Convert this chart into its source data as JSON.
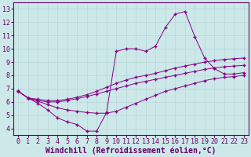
{
  "xlabel": "Windchill (Refroidissement éolien,°C)",
  "bg_color": "#cce8e8",
  "line_color": "#880088",
  "grid_color": "#b8d8d8",
  "xlim": [
    -0.5,
    23.5
  ],
  "ylim": [
    3.5,
    13.5
  ],
  "xticks": [
    0,
    1,
    2,
    3,
    4,
    5,
    6,
    7,
    8,
    9,
    10,
    11,
    12,
    13,
    14,
    15,
    16,
    17,
    18,
    19,
    20,
    21,
    22,
    23
  ],
  "yticks": [
    4,
    5,
    6,
    7,
    8,
    9,
    10,
    11,
    12,
    13
  ],
  "line1_x": [
    0,
    1,
    2,
    3,
    4,
    5,
    6,
    7,
    8,
    9,
    10,
    11,
    12,
    13,
    14,
    15,
    16,
    17,
    18,
    19,
    20,
    21,
    22,
    23
  ],
  "line1_y": [
    6.8,
    6.3,
    6.05,
    5.8,
    5.55,
    5.4,
    5.3,
    5.2,
    5.15,
    5.15,
    5.3,
    5.6,
    5.9,
    6.2,
    6.5,
    6.8,
    7.0,
    7.2,
    7.4,
    7.6,
    7.75,
    7.85,
    7.9,
    8.0
  ],
  "line2_x": [
    0,
    1,
    2,
    3,
    4,
    5,
    6,
    7,
    8,
    9,
    10,
    11,
    12,
    13,
    14,
    15,
    16,
    17,
    18,
    19,
    20,
    21,
    22,
    23
  ],
  "line2_y": [
    6.8,
    6.3,
    5.9,
    5.4,
    4.8,
    4.5,
    4.3,
    3.8,
    3.8,
    5.2,
    9.8,
    10.0,
    10.0,
    9.8,
    10.2,
    11.6,
    12.6,
    12.8,
    10.9,
    9.3,
    8.5,
    8.1,
    8.1,
    8.2
  ],
  "line3_x": [
    0,
    1,
    2,
    3,
    4,
    5,
    6,
    7,
    8,
    9,
    10,
    11,
    12,
    13,
    14,
    15,
    16,
    17,
    18,
    19,
    20,
    21,
    22,
    23
  ],
  "line3_y": [
    6.8,
    6.3,
    6.1,
    6.0,
    6.0,
    6.1,
    6.25,
    6.4,
    6.6,
    6.8,
    7.0,
    7.2,
    7.4,
    7.55,
    7.7,
    7.85,
    8.0,
    8.15,
    8.3,
    8.45,
    8.55,
    8.65,
    8.7,
    8.75
  ],
  "line4_x": [
    0,
    1,
    2,
    3,
    4,
    5,
    6,
    7,
    8,
    9,
    10,
    11,
    12,
    13,
    14,
    15,
    16,
    17,
    18,
    19,
    20,
    21,
    22,
    23
  ],
  "line4_y": [
    6.8,
    6.3,
    6.2,
    6.1,
    6.1,
    6.2,
    6.35,
    6.55,
    6.8,
    7.1,
    7.4,
    7.65,
    7.85,
    8.0,
    8.15,
    8.35,
    8.55,
    8.7,
    8.85,
    9.0,
    9.1,
    9.2,
    9.25,
    9.3
  ],
  "xlabel_fontsize": 7,
  "tick_fontsize": 6
}
